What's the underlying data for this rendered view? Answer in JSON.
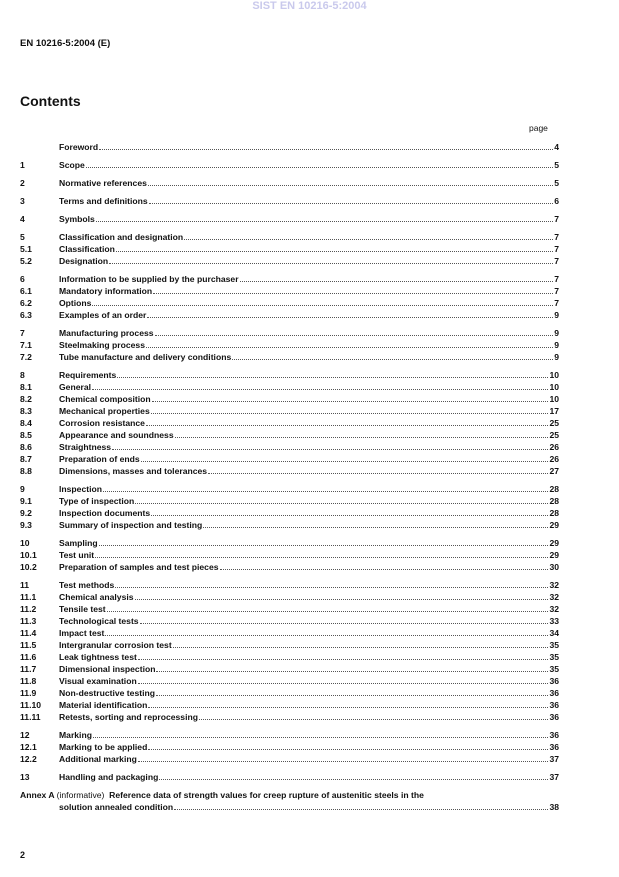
{
  "watermark": "SIST EN 10216-5:2004",
  "doc_id": "EN 10216-5:2004 (E)",
  "contents_title": "Contents",
  "page_label": "page",
  "toc": [
    [
      {
        "num": "",
        "title": "Foreword",
        "page": "4"
      }
    ],
    [
      {
        "num": "1",
        "title": "Scope",
        "page": "5"
      }
    ],
    [
      {
        "num": "2",
        "title": "Normative references",
        "page": "5"
      }
    ],
    [
      {
        "num": "3",
        "title": "Terms and definitions",
        "page": "6"
      }
    ],
    [
      {
        "num": "4",
        "title": "Symbols",
        "page": "7"
      }
    ],
    [
      {
        "num": "5",
        "title": "Classification and designation",
        "page": "7"
      },
      {
        "num": "5.1",
        "title": "Classification",
        "page": "7"
      },
      {
        "num": "5.2",
        "title": "Designation",
        "page": "7"
      }
    ],
    [
      {
        "num": "6",
        "title": "Information to be supplied by the purchaser",
        "page": "7"
      },
      {
        "num": "6.1",
        "title": "Mandatory information",
        "page": "7"
      },
      {
        "num": "6.2",
        "title": "Options",
        "page": "7"
      },
      {
        "num": "6.3",
        "title": "Examples of an order",
        "page": "9"
      }
    ],
    [
      {
        "num": "7",
        "title": "Manufacturing process",
        "page": "9"
      },
      {
        "num": "7.1",
        "title": "Steelmaking process",
        "page": "9"
      },
      {
        "num": "7.2",
        "title": "Tube manufacture and delivery conditions",
        "page": "9"
      }
    ],
    [
      {
        "num": "8",
        "title": "Requirements",
        "page": "10"
      },
      {
        "num": "8.1",
        "title": "General",
        "page": "10"
      },
      {
        "num": "8.2",
        "title": "Chemical composition",
        "page": "10"
      },
      {
        "num": "8.3",
        "title": "Mechanical properties",
        "page": "17"
      },
      {
        "num": "8.4",
        "title": "Corrosion resistance",
        "page": "25"
      },
      {
        "num": "8.5",
        "title": "Appearance and soundness",
        "page": "25"
      },
      {
        "num": "8.6",
        "title": "Straightness",
        "page": "26"
      },
      {
        "num": "8.7",
        "title": "Preparation of ends",
        "page": "26"
      },
      {
        "num": "8.8",
        "title": "Dimensions, masses and tolerances",
        "page": "27"
      }
    ],
    [
      {
        "num": "9",
        "title": "Inspection",
        "page": "28"
      },
      {
        "num": "9.1",
        "title": "Type of inspection",
        "page": "28"
      },
      {
        "num": "9.2",
        "title": "Inspection documents",
        "page": "28"
      },
      {
        "num": "9.3",
        "title": "Summary of inspection and testing",
        "page": "29"
      }
    ],
    [
      {
        "num": "10",
        "title": "Sampling",
        "page": "29"
      },
      {
        "num": "10.1",
        "title": "Test unit",
        "page": "29"
      },
      {
        "num": "10.2",
        "title": "Preparation of samples and test pieces",
        "page": "30"
      }
    ],
    [
      {
        "num": "11",
        "title": "Test methods",
        "page": "32"
      },
      {
        "num": "11.1",
        "title": "Chemical analysis",
        "page": "32"
      },
      {
        "num": "11.2",
        "title": "Tensile test",
        "page": "32"
      },
      {
        "num": "11.3",
        "title": "Technological tests",
        "page": "33"
      },
      {
        "num": "11.4",
        "title": "Impact test",
        "page": "34"
      },
      {
        "num": "11.5",
        "title": "Intergranular corrosion test",
        "page": "35"
      },
      {
        "num": "11.6",
        "title": "Leak tightness test",
        "page": "35"
      },
      {
        "num": "11.7",
        "title": "Dimensional inspection",
        "page": "35"
      },
      {
        "num": "11.8",
        "title": "Visual examination",
        "page": "36"
      },
      {
        "num": "11.9",
        "title": "Non-destructive testing",
        "page": "36"
      },
      {
        "num": "11.10",
        "title": "Material identification",
        "page": "36"
      },
      {
        "num": "11.11",
        "title": "Retests, sorting and reprocessing",
        "page": "36"
      }
    ],
    [
      {
        "num": "12",
        "title": "Marking",
        "page": "36"
      },
      {
        "num": "12.1",
        "title": "Marking to be applied",
        "page": "36"
      },
      {
        "num": "12.2",
        "title": "Additional marking",
        "page": "37"
      }
    ],
    [
      {
        "num": "13",
        "title": "Handling and packaging",
        "page": "37"
      }
    ]
  ],
  "annex": {
    "label": "Annex A",
    "qualifier": "(informative)",
    "title_line1": "Reference data of strength values for creep rupture of austenitic steels in the",
    "title_line2": "solution annealed condition",
    "page": "38"
  },
  "page_number": "2"
}
